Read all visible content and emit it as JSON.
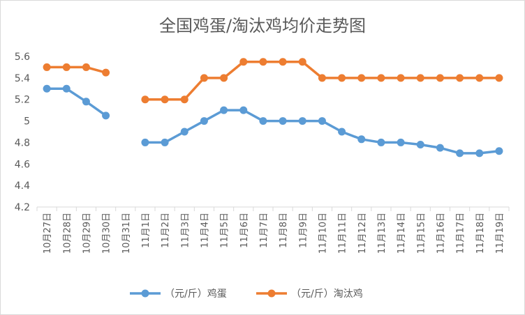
{
  "chart_data": {
    "type": "line",
    "title": "全国鸡蛋/淘汰鸡均价走势图",
    "xlabel": "",
    "ylabel": "",
    "categories": [
      "10月27日",
      "10月28日",
      "10月29日",
      "10月30日",
      "10月31日",
      "11月1日",
      "11月2日",
      "11月3日",
      "11月4日",
      "11月5日",
      "11月6日",
      "11月7日",
      "11月8日",
      "11月9日",
      "11月10日",
      "11月11日",
      "11月12日",
      "11月13日",
      "11月14日",
      "11月15日",
      "11月16日",
      "11月17日",
      "11月18日",
      "11月19日"
    ],
    "y_ticks": [
      "4.2",
      "4.4",
      "4.6",
      "4.8",
      "5",
      "5.2",
      "5.4",
      "5.6"
    ],
    "ylim": [
      4.2,
      5.6
    ],
    "grid": false,
    "legend_position": "bottom",
    "series": [
      {
        "name": "（元/斤）鸡蛋",
        "color": "#5b9bd5",
        "values": [
          5.3,
          5.3,
          5.18,
          5.05,
          null,
          4.8,
          4.8,
          4.9,
          5.0,
          5.1,
          5.1,
          5.0,
          5.0,
          5.0,
          5.0,
          4.9,
          4.83,
          4.8,
          4.8,
          4.78,
          4.75,
          4.7,
          4.7,
          4.72
        ]
      },
      {
        "name": "（元/斤）淘汰鸡",
        "color": "#ed7d31",
        "values": [
          5.5,
          5.5,
          5.5,
          5.45,
          null,
          5.2,
          5.2,
          5.2,
          5.4,
          5.4,
          5.55,
          5.55,
          5.55,
          5.55,
          5.4,
          5.4,
          5.4,
          5.4,
          5.4,
          5.4,
          5.4,
          5.4,
          5.4,
          5.4
        ]
      }
    ]
  }
}
